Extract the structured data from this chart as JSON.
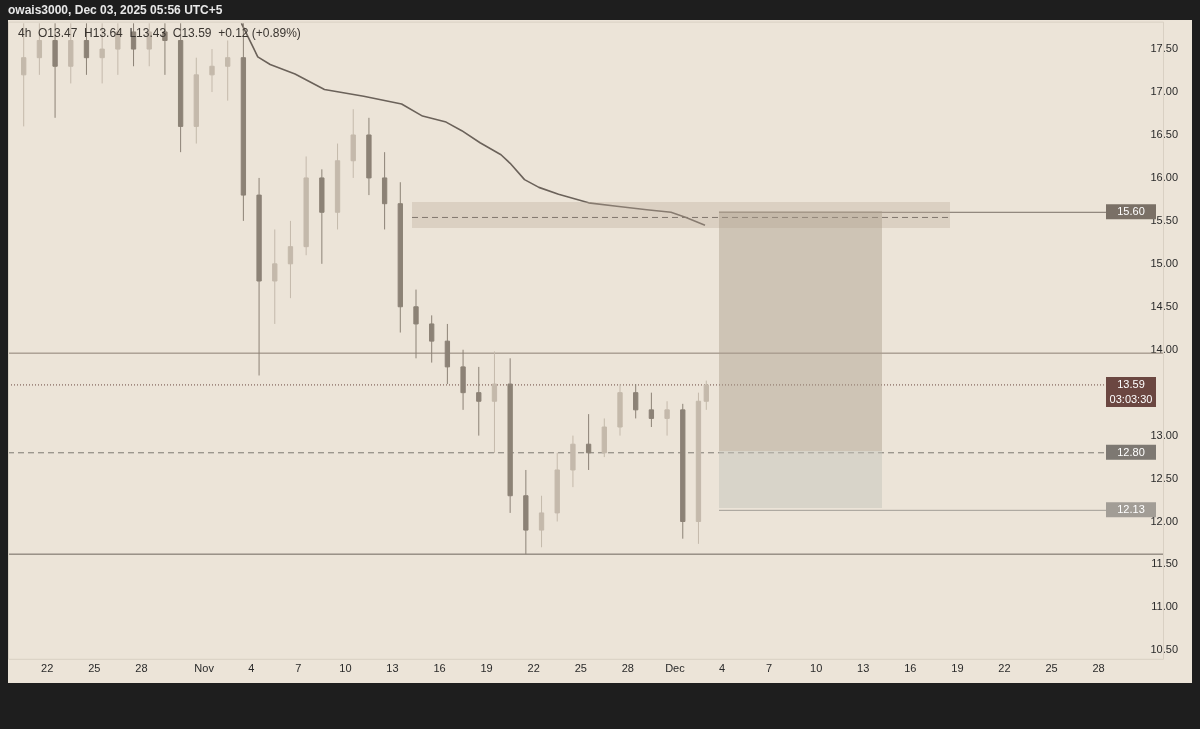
{
  "chart_data": {
    "type": "candlestick",
    "colors": [
      "#c4b9ab",
      "#c4b9ab",
      "#8c8276",
      "#c4b9ab",
      "#8c8276",
      "#c4b9ab",
      "#c4b9ab",
      "#8c8276",
      "#c4b9ab",
      "#8c8276",
      "#8c8276",
      "#c4b9ab",
      "#c4b9ab",
      "#c4b9ab",
      "#8c8276",
      "#8c8276",
      "#c4b9ab",
      "#c4b9ab",
      "#c4b9ab",
      "#8c8276",
      "#c4b9ab",
      "#c4b9ab",
      "#8c8276",
      "#8c8276",
      "#8c8276",
      "#8c8276",
      "#8c8276",
      "#8c8276",
      "#8c8276",
      "#8c8276",
      "#c4b9ab",
      "#8c8276",
      "#8c8276",
      "#c4b9ab",
      "#c4b9ab",
      "#c4b9ab",
      "#8c8276",
      "#c4b9ab",
      "#c4b9ab",
      "#8c8276",
      "#8c8276",
      "#c4b9ab",
      "#8c8276",
      "#c4b9ab",
      "#c4b9ab"
    ],
    "annotations": [
      "owais3000, Dec 03, 2025 05:56 UTC+5",
      "4h  O13.47  H13.64  L13.43  C13.59  +0.12 (+0.89%)"
    ],
    "x": [
      "2025-10-20T12:00",
      "2025-10-21T12:00",
      "2025-10-22T12:00",
      "2025-10-23T12:00",
      "2025-10-24T12:00",
      "2025-10-25T12:00",
      "2025-10-26T12:00",
      "2025-10-27T12:00",
      "2025-10-28T12:00",
      "2025-10-29T12:00",
      "2025-10-30T12:00",
      "2025-10-31T12:00",
      "2025-11-01T12:00",
      "2025-11-02T12:00",
      "2025-11-03T12:00",
      "2025-11-04T12:00",
      "2025-11-05T12:00",
      "2025-11-06T12:00",
      "2025-11-07T12:00",
      "2025-11-08T12:00",
      "2025-11-09T12:00",
      "2025-11-10T12:00",
      "2025-11-11T12:00",
      "2025-11-12T12:00",
      "2025-11-13T12:00",
      "2025-11-14T12:00",
      "2025-11-15T12:00",
      "2025-11-16T12:00",
      "2025-11-17T12:00",
      "2025-11-18T12:00",
      "2025-11-19T12:00",
      "2025-11-20T12:00",
      "2025-11-21T12:00",
      "2025-11-22T12:00",
      "2025-11-23T12:00",
      "2025-11-24T12:00",
      "2025-11-25T12:00",
      "2025-11-26T12:00",
      "2025-11-27T12:00",
      "2025-11-28T12:00",
      "2025-11-29T12:00",
      "2025-11-30T12:00",
      "2025-12-01T12:00",
      "2025-12-02T12:00",
      "2025-12-03T00:00"
    ],
    "ohlc": [
      [
        17.2,
        17.8,
        16.6,
        17.4
      ],
      [
        17.4,
        17.8,
        17.2,
        17.6
      ],
      [
        17.6,
        17.8,
        16.7,
        17.3
      ],
      [
        17.3,
        17.8,
        17.1,
        17.6
      ],
      [
        17.6,
        17.8,
        17.2,
        17.4
      ],
      [
        17.4,
        17.8,
        17.1,
        17.5
      ],
      [
        17.5,
        17.8,
        17.2,
        17.7
      ],
      [
        17.7,
        17.8,
        17.3,
        17.5
      ],
      [
        17.5,
        17.8,
        17.3,
        17.7
      ],
      [
        17.7,
        17.8,
        17.2,
        17.6
      ],
      [
        17.6,
        17.8,
        16.3,
        16.6
      ],
      [
        16.6,
        17.4,
        16.4,
        17.2
      ],
      [
        17.2,
        17.5,
        17.0,
        17.3
      ],
      [
        17.3,
        17.6,
        16.9,
        17.4
      ],
      [
        17.4,
        17.8,
        15.5,
        15.8
      ],
      [
        15.8,
        16.0,
        13.7,
        14.8
      ],
      [
        14.8,
        15.4,
        14.3,
        15.0
      ],
      [
        15.0,
        15.5,
        14.6,
        15.2
      ],
      [
        15.2,
        16.25,
        15.1,
        16.0
      ],
      [
        16.0,
        16.1,
        15.0,
        15.6
      ],
      [
        15.6,
        16.4,
        15.4,
        16.2
      ],
      [
        16.2,
        16.8,
        16.0,
        16.5
      ],
      [
        16.5,
        16.7,
        15.8,
        16.0
      ],
      [
        16.0,
        16.3,
        15.4,
        15.7
      ],
      [
        15.7,
        15.95,
        14.2,
        14.5
      ],
      [
        14.5,
        14.7,
        13.9,
        14.3
      ],
      [
        14.3,
        14.4,
        13.85,
        14.1
      ],
      [
        14.1,
        14.3,
        13.6,
        13.8
      ],
      [
        13.8,
        14.0,
        13.3,
        13.5
      ],
      [
        13.5,
        13.8,
        13.0,
        13.4
      ],
      [
        13.4,
        13.98,
        12.8,
        13.6
      ],
      [
        13.6,
        13.9,
        12.1,
        12.3
      ],
      [
        12.3,
        12.6,
        11.62,
        11.9
      ],
      [
        11.9,
        12.3,
        11.7,
        12.1
      ],
      [
        12.1,
        12.8,
        12.0,
        12.6
      ],
      [
        12.6,
        13.0,
        12.4,
        12.9
      ],
      [
        12.9,
        13.25,
        12.6,
        12.8
      ],
      [
        12.8,
        13.2,
        12.75,
        13.1
      ],
      [
        13.1,
        13.6,
        13.0,
        13.5
      ],
      [
        13.5,
        13.6,
        13.2,
        13.3
      ],
      [
        13.3,
        13.5,
        13.1,
        13.2
      ],
      [
        13.2,
        13.4,
        13.0,
        13.3
      ],
      [
        13.3,
        13.37,
        11.8,
        12.0
      ],
      [
        12.0,
        13.5,
        11.74,
        13.4
      ],
      [
        13.4,
        13.64,
        13.3,
        13.59
      ]
    ],
    "series": [
      {
        "type": "line",
        "color": "#6b625a",
        "x": [
          "2025-11-03T09:00",
          "2025-11-04T10:00",
          "2025-11-05T05:00",
          "2025-11-06T19:00",
          "2025-11-08T16:00",
          "2025-11-11T04:00",
          "2025-11-13T14:00",
          "2025-11-14T22:00",
          "2025-11-16T10:00",
          "2025-11-17T10:00",
          "2025-11-18T14:00",
          "2025-11-19T22:00",
          "2025-11-20T12:00",
          "2025-11-21T10:00",
          "2025-11-22T08:00",
          "2025-11-23T14:00",
          "2025-11-25T12:00",
          "2025-11-27T07:00",
          "2025-11-29T05:00",
          "2025-11-30T18:00",
          "2025-12-01T17:00",
          "2025-12-02T22:00"
        ],
        "values": [
          17.8,
          17.41,
          17.32,
          17.21,
          17.03,
          16.95,
          16.86,
          16.72,
          16.65,
          16.55,
          16.41,
          16.27,
          16.17,
          15.98,
          15.89,
          15.81,
          15.71,
          15.67,
          15.63,
          15.6,
          15.54,
          15.45
        ]
      }
    ],
    "ref_lines": [
      {
        "axis": "y",
        "value": 13.96,
        "color": "#8c8074",
        "line_style": "solid"
      },
      {
        "axis": "y",
        "value": 11.62,
        "color": "#6e665d",
        "line_style": "solid"
      },
      {
        "axis": "y",
        "value": 12.8,
        "label": "12.80",
        "color": "#7d7872",
        "line_style": "dashed"
      },
      {
        "axis": "y",
        "value": 13.59,
        "label": "13.59\n03:03:30",
        "color": "#6b4741",
        "line_style": "dotted"
      },
      {
        "axis": "y",
        "value": 15.54,
        "color": "#5f5a54",
        "line_style": "dashed"
      },
      {
        "axis": "y",
        "value": 15.6,
        "label": "15.60",
        "color": "#7a7066",
        "line_style": "solid"
      },
      {
        "axis": "y",
        "value": 12.13,
        "label": "12.13",
        "color": "#a29d96",
        "line_style": "solid"
      }
    ],
    "xlim": [
      "2025-10-19T12:00",
      "2026-01-01T04:00"
    ],
    "xticks": [
      {
        "value": "2025-10-22",
        "label": "22"
      },
      {
        "value": "2025-10-25",
        "label": "25"
      },
      {
        "value": "2025-10-28",
        "label": "28"
      },
      {
        "value": "2025-11-01",
        "label": "Nov"
      },
      {
        "value": "2025-11-04",
        "label": "4"
      },
      {
        "value": "2025-11-07",
        "label": "7"
      },
      {
        "value": "2025-11-10",
        "label": "10"
      },
      {
        "value": "2025-11-13",
        "label": "13"
      },
      {
        "value": "2025-11-16",
        "label": "16"
      },
      {
        "value": "2025-11-19",
        "label": "19"
      },
      {
        "value": "2025-11-22",
        "label": "22"
      },
      {
        "value": "2025-11-25",
        "label": "25"
      },
      {
        "value": "2025-11-28",
        "label": "28"
      },
      {
        "value": "2025-12-01",
        "label": "Dec"
      },
      {
        "value": "2025-12-04",
        "label": "4"
      },
      {
        "value": "2025-12-07",
        "label": "7"
      },
      {
        "value": "2025-12-10",
        "label": "10"
      },
      {
        "value": "2025-12-13",
        "label": "13"
      },
      {
        "value": "2025-12-16",
        "label": "16"
      },
      {
        "value": "2025-12-19",
        "label": "19"
      },
      {
        "value": "2025-12-22",
        "label": "22"
      },
      {
        "value": "2025-12-25",
        "label": "25"
      },
      {
        "value": "2025-12-28",
        "label": "28"
      }
    ],
    "ylim": [
      10.39,
      17.82
    ],
    "yticks": [
      {
        "value": 10.5,
        "label": "10.50"
      },
      {
        "value": 11,
        "label": "11.00"
      },
      {
        "value": 11.5,
        "label": "11.50"
      },
      {
        "value": 12,
        "label": "12.00"
      },
      {
        "value": 12.5,
        "label": "12.50"
      },
      {
        "value": 13,
        "label": "13.00"
      },
      {
        "value": 14,
        "label": "14.00"
      },
      {
        "value": 14.5,
        "label": "14.50"
      },
      {
        "value": 15,
        "label": "15.00"
      },
      {
        "value": 15.5,
        "label": "15.50"
      },
      {
        "value": 16,
        "label": "16.00"
      },
      {
        "value": 16.5,
        "label": "16.50"
      },
      {
        "value": 17,
        "label": "17.00"
      },
      {
        "value": 17.5,
        "label": "17.50"
      }
    ],
    "grid": false,
    "legend": false
  }
}
